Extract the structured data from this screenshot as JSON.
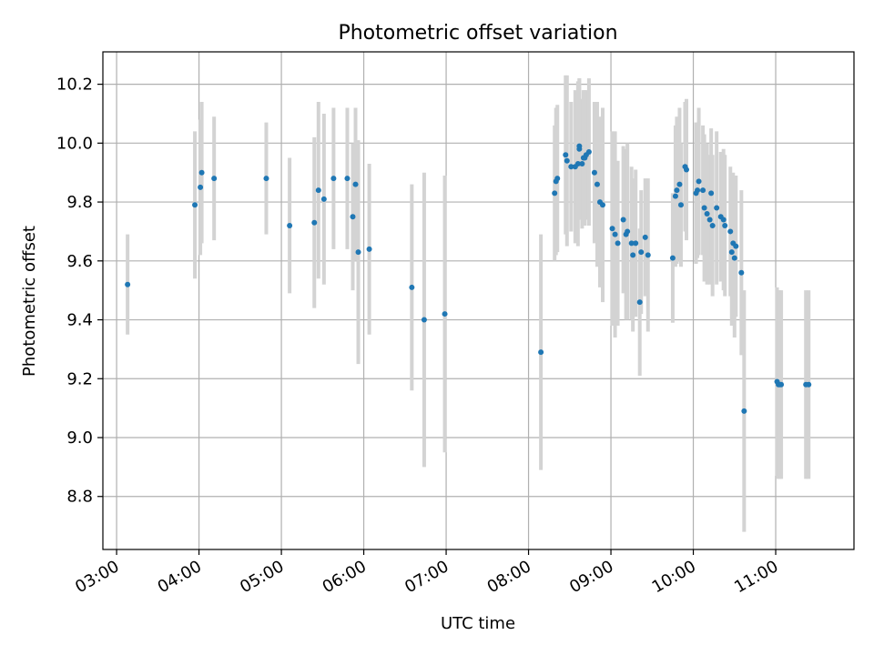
{
  "chart_data": {
    "type": "scatter",
    "title": "Photometric offset variation",
    "xlabel": "UTC time",
    "ylabel": "Photometric offset",
    "xlim": [
      "02:50",
      "11:57"
    ],
    "ylim": [
      8.62,
      10.31
    ],
    "grid": true,
    "x_ticks": [
      "03:00",
      "04:00",
      "05:00",
      "06:00",
      "07:00",
      "08:00",
      "09:00",
      "10:00",
      "11:00"
    ],
    "y_ticks": [
      "8.8",
      "9.0",
      "9.2",
      "9.4",
      "9.6",
      "9.8",
      "10.0",
      "10.2"
    ],
    "colors": {
      "point": "#1f77b4",
      "errorbar": "#d3d3d3",
      "grid": "#b0b0b0"
    },
    "series": [
      {
        "x": [
          "03:08",
          "03:57",
          "04:01",
          "04:02",
          "04:11",
          "04:49",
          "05:06",
          "05:24",
          "05:27",
          "05:31",
          "05:38",
          "05:48",
          "05:52",
          "05:54",
          "05:56",
          "06:04",
          "06:35",
          "06:44",
          "06:59",
          "08:09",
          "08:19",
          "08:20",
          "08:21",
          "08:27",
          "08:28",
          "08:31",
          "08:34",
          "08:36",
          "08:37",
          "08:37",
          "08:39",
          "08:40",
          "08:41",
          "08:42",
          "08:44",
          "08:48",
          "08:50",
          "08:52",
          "08:54",
          "09:01",
          "09:03",
          "09:05",
          "09:09",
          "09:11",
          "09:12",
          "09:15",
          "09:16",
          "09:18",
          "09:21",
          "09:22",
          "09:25",
          "09:27",
          "09:45",
          "09:47",
          "09:48",
          "09:50",
          "09:51",
          "09:54",
          "09:55",
          "10:02",
          "10:03",
          "10:04",
          "10:07",
          "10:08",
          "10:10",
          "10:12",
          "10:13",
          "10:14",
          "10:17",
          "10:20",
          "10:22",
          "10:23",
          "10:27",
          "10:28",
          "10:29",
          "10:30",
          "10:31",
          "10:35",
          "10:37",
          "11:01",
          "11:02",
          "11:03",
          "11:04",
          "11:22",
          "11:24"
        ],
        "y": [
          9.52,
          9.79,
          9.85,
          9.9,
          9.88,
          9.88,
          9.72,
          9.73,
          9.84,
          9.81,
          9.88,
          9.88,
          9.75,
          9.86,
          9.63,
          9.64,
          9.51,
          9.4,
          9.42,
          9.29,
          9.83,
          9.87,
          9.88,
          9.96,
          9.94,
          9.92,
          9.92,
          9.93,
          9.99,
          9.98,
          9.93,
          9.95,
          9.95,
          9.96,
          9.97,
          9.9,
          9.86,
          9.8,
          9.79,
          9.71,
          9.69,
          9.66,
          9.74,
          9.69,
          9.7,
          9.66,
          9.62,
          9.66,
          9.46,
          9.63,
          9.68,
          9.62,
          9.61,
          9.82,
          9.84,
          9.86,
          9.79,
          9.92,
          9.91,
          9.83,
          9.84,
          9.87,
          9.84,
          9.78,
          9.76,
          9.74,
          9.83,
          9.72,
          9.78,
          9.75,
          9.74,
          9.72,
          9.7,
          9.63,
          9.66,
          9.61,
          9.65,
          9.56,
          9.09,
          9.19,
          9.18,
          9.18,
          9.18,
          9.18,
          9.18
        ],
        "err": [
          0.17,
          0.25,
          0.23,
          0.24,
          0.21,
          0.19,
          0.23,
          0.29,
          0.3,
          0.29,
          0.24,
          0.24,
          0.25,
          0.26,
          0.38,
          0.29,
          0.35,
          0.5,
          0.47,
          0.4,
          0.23,
          0.25,
          0.25,
          0.27,
          0.29,
          0.22,
          0.26,
          0.28,
          0.23,
          0.24,
          0.22,
          0.23,
          0.23,
          0.22,
          0.25,
          0.24,
          0.28,
          0.29,
          0.33,
          0.33,
          0.35,
          0.28,
          0.25,
          0.29,
          0.3,
          0.26,
          0.26,
          0.25,
          0.25,
          0.21,
          0.2,
          0.26,
          0.22,
          0.24,
          0.25,
          0.26,
          0.21,
          0.22,
          0.24,
          0.24,
          0.23,
          0.25,
          0.22,
          0.25,
          0.24,
          0.22,
          0.22,
          0.24,
          0.26,
          0.22,
          0.24,
          0.24,
          0.22,
          0.25,
          0.24,
          0.27,
          0.24,
          0.28,
          0.41,
          0.32,
          0.32,
          0.32,
          0.32,
          0.32,
          0.32
        ]
      }
    ]
  }
}
